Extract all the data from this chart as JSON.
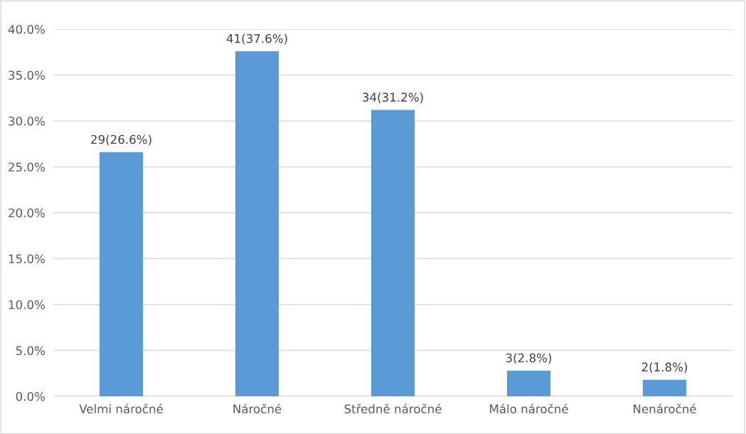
{
  "chart_data": {
    "type": "bar",
    "categories": [
      "Velmi náročné",
      "Náročné",
      "Středně náročné",
      "Málo náročné",
      "Nenáročné"
    ],
    "values": [
      26.6,
      37.6,
      31.2,
      2.8,
      1.8
    ],
    "value_labels": [
      "29(26.6%)",
      "41(37.6%)",
      "34(31.2%)",
      "3(2.8%)",
      "2(1.8%)"
    ],
    "color": "#5b9bd5",
    "ylim": [
      0,
      40
    ],
    "yticks": [
      {
        "value": 0,
        "label": "0.0%"
      },
      {
        "value": 5,
        "label": "5.0%"
      },
      {
        "value": 10,
        "label": "10.0%"
      },
      {
        "value": 15,
        "label": "15.0%"
      },
      {
        "value": 20,
        "label": "20.0%"
      },
      {
        "value": 25,
        "label": "25.0%"
      },
      {
        "value": 30,
        "label": "30.0%"
      },
      {
        "value": 35,
        "label": "35.0%"
      },
      {
        "value": 40,
        "label": "40.0%"
      }
    ],
    "grid": "y"
  }
}
